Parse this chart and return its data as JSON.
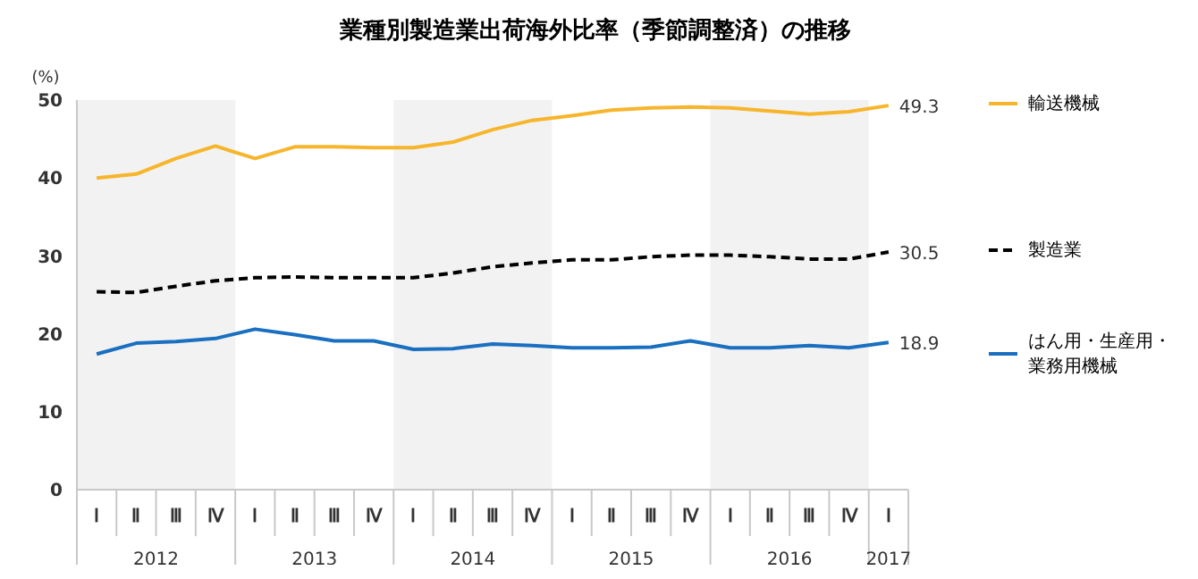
{
  "chart_data": {
    "type": "line",
    "title": "業種別製造業出荷海外比率（季節調整済）の推移",
    "ylabel": "(%)",
    "categories": [
      "Ⅰ",
      "Ⅱ",
      "Ⅲ",
      "Ⅳ",
      "Ⅰ",
      "Ⅱ",
      "Ⅲ",
      "Ⅳ",
      "Ⅰ",
      "Ⅱ",
      "Ⅲ",
      "Ⅳ",
      "Ⅰ",
      "Ⅱ",
      "Ⅲ",
      "Ⅳ",
      "Ⅰ",
      "Ⅱ",
      "Ⅲ",
      "Ⅳ",
      "Ⅰ"
    ],
    "annotations": [
      "2012",
      "2013",
      "2014",
      "2015",
      "2016",
      "2017"
    ],
    "series": [
      {
        "name": "輸送機械",
        "color": "#f7b52c",
        "line_style": "solid",
        "values": [
          40.0,
          40.5,
          42.5,
          44.1,
          42.5,
          44.0,
          44.0,
          43.9,
          43.9,
          44.6,
          46.2,
          47.4,
          48.0,
          48.7,
          49.0,
          49.1,
          49.0,
          48.6,
          48.2,
          48.5,
          49.3
        ],
        "value_labels": [
          null,
          null,
          null,
          null,
          null,
          null,
          null,
          null,
          null,
          null,
          null,
          null,
          null,
          null,
          null,
          null,
          null,
          null,
          null,
          null,
          "49.3"
        ]
      },
      {
        "name": "製造業",
        "color": "#000000",
        "line_style": "dashed",
        "values": [
          25.4,
          25.3,
          26.1,
          26.8,
          27.2,
          27.3,
          27.2,
          27.2,
          27.2,
          27.8,
          28.6,
          29.1,
          29.5,
          29.5,
          29.9,
          30.1,
          30.1,
          29.9,
          29.6,
          29.6,
          30.5
        ],
        "value_labels": [
          null,
          null,
          null,
          null,
          null,
          null,
          null,
          null,
          null,
          null,
          null,
          null,
          null,
          null,
          null,
          null,
          null,
          null,
          null,
          null,
          "30.5"
        ]
      },
      {
        "name": "はん用・生産用・業務用機械",
        "color": "#1a6fc0",
        "line_style": "solid",
        "values": [
          17.4,
          18.8,
          19.0,
          19.4,
          20.6,
          19.9,
          19.1,
          19.1,
          18.0,
          18.1,
          18.7,
          18.5,
          18.2,
          18.2,
          18.3,
          19.1,
          18.2,
          18.2,
          18.5,
          18.2,
          18.9
        ],
        "value_labels": [
          null,
          null,
          null,
          null,
          null,
          null,
          null,
          null,
          null,
          null,
          null,
          null,
          null,
          null,
          null,
          null,
          null,
          null,
          null,
          null,
          "18.9"
        ]
      }
    ],
    "ylim": [
      0,
      50
    ],
    "yticks": [
      0,
      10,
      20,
      30,
      40,
      50
    ],
    "grid": false,
    "legend": "right",
    "marker": "none"
  }
}
